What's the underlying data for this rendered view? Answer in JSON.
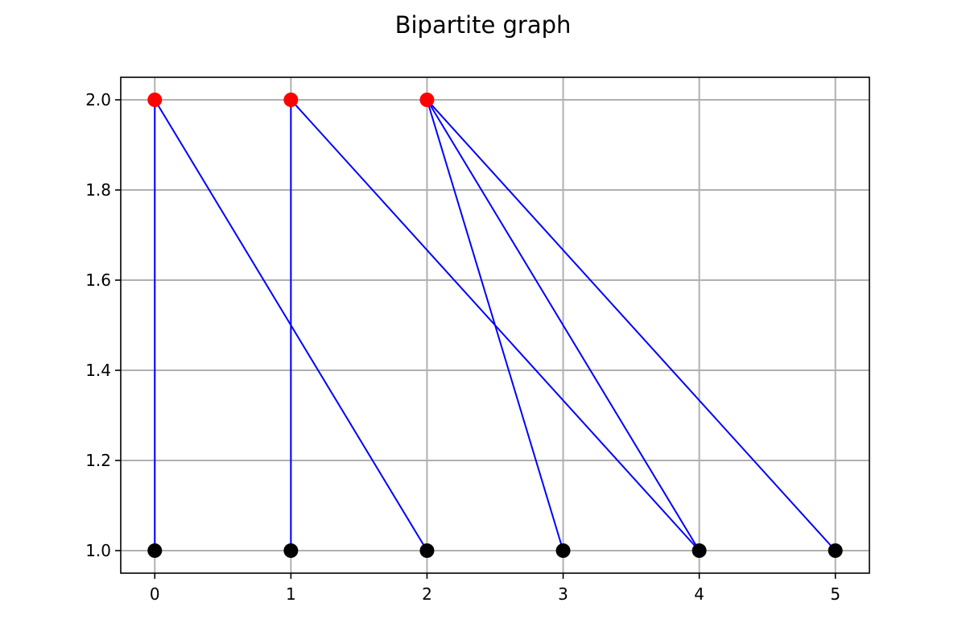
{
  "chart_data": {
    "type": "scatter",
    "title": "Bipartite graph",
    "xlabel": "",
    "ylabel": "",
    "xlim": [
      -0.25,
      5.25
    ],
    "ylim": [
      0.95,
      2.05
    ],
    "xticks": [
      0,
      1,
      2,
      3,
      4,
      5
    ],
    "xtick_labels": [
      "0",
      "1",
      "2",
      "3",
      "4",
      "5"
    ],
    "yticks": [
      1.0,
      1.2,
      1.4,
      1.6,
      1.8,
      2.0
    ],
    "ytick_labels": [
      "1.0",
      "1.2",
      "1.4",
      "1.6",
      "1.8",
      "2.0"
    ],
    "grid": true,
    "top_nodes": {
      "color": "#ff0000",
      "points": [
        [
          0,
          2.0
        ],
        [
          1,
          2.0
        ],
        [
          2,
          2.0
        ]
      ]
    },
    "bottom_nodes": {
      "color": "#000000",
      "points": [
        [
          0,
          1.0
        ],
        [
          1,
          1.0
        ],
        [
          2,
          1.0
        ],
        [
          3,
          1.0
        ],
        [
          4,
          1.0
        ],
        [
          5,
          1.0
        ]
      ]
    },
    "edges": {
      "color": "#0000ff",
      "pairs": [
        [
          [
            0,
            2.0
          ],
          [
            0,
            1.0
          ]
        ],
        [
          [
            0,
            2.0
          ],
          [
            2,
            1.0
          ]
        ],
        [
          [
            1,
            2.0
          ],
          [
            1,
            1.0
          ]
        ],
        [
          [
            1,
            2.0
          ],
          [
            4,
            1.0
          ]
        ],
        [
          [
            2,
            2.0
          ],
          [
            3,
            1.0
          ]
        ],
        [
          [
            2,
            2.0
          ],
          [
            4,
            1.0
          ]
        ],
        [
          [
            2,
            2.0
          ],
          [
            5,
            1.0
          ]
        ]
      ]
    }
  }
}
